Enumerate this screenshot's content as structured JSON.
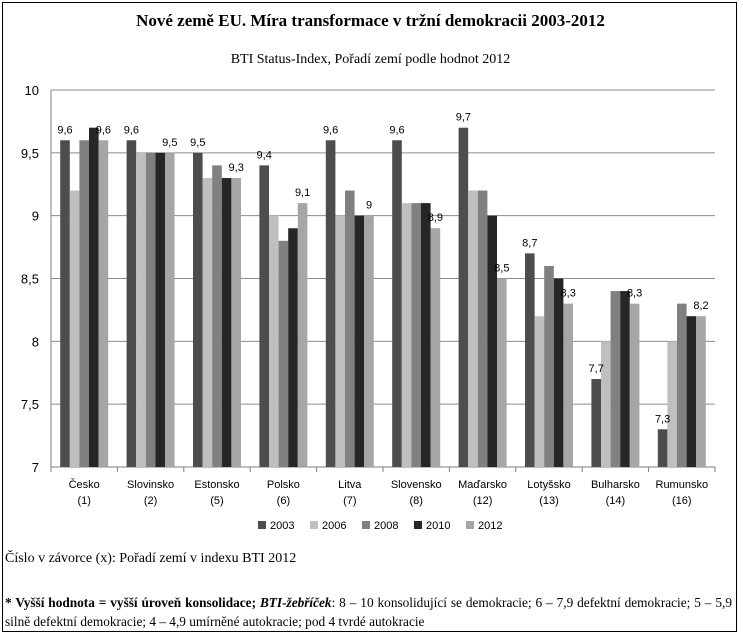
{
  "chart_data": {
    "type": "bar",
    "title": "Nové země EU. Míra transformace v tržní demokracii 2003-2012",
    "subtitle": "BTI Status-Index, Pořadí zemí podle hodnot 2012",
    "categories": [
      {
        "name": "Česko",
        "rank": "(1)"
      },
      {
        "name": "Slovinsko",
        "rank": "(2)"
      },
      {
        "name": "Estonsko",
        "rank": "(5)"
      },
      {
        "name": "Polsko",
        "rank": "(6)"
      },
      {
        "name": "Litva",
        "rank": "(7)"
      },
      {
        "name": "Slovensko",
        "rank": "(8)"
      },
      {
        "name": "Maďarsko",
        "rank": "(12)"
      },
      {
        "name": "Lotyšsko",
        "rank": "(13)"
      },
      {
        "name": "Bulharsko",
        "rank": "(14)"
      },
      {
        "name": "Rumunsko",
        "rank": "(16)"
      }
    ],
    "series": [
      {
        "name": "2003",
        "color": "#4d4d4d",
        "values": [
          9.6,
          9.6,
          9.5,
          9.4,
          9.6,
          9.6,
          9.7,
          8.7,
          7.7,
          7.3
        ]
      },
      {
        "name": "2006",
        "color": "#bfbfbf",
        "values": [
          9.2,
          9.5,
          9.3,
          9.0,
          9.0,
          9.1,
          9.2,
          8.2,
          8.0,
          8.0
        ]
      },
      {
        "name": "2008",
        "color": "#808080",
        "values": [
          9.6,
          9.5,
          9.4,
          8.8,
          9.2,
          9.1,
          9.2,
          8.6,
          8.4,
          8.3
        ]
      },
      {
        "name": "2010",
        "color": "#262626",
        "values": [
          9.7,
          9.5,
          9.3,
          8.9,
          9.0,
          9.1,
          9.0,
          8.5,
          8.4,
          8.2
        ]
      },
      {
        "name": "2012",
        "color": "#a6a6a6",
        "values": [
          9.6,
          9.5,
          9.3,
          9.1,
          9.0,
          8.9,
          8.5,
          8.3,
          8.3,
          8.2
        ]
      }
    ],
    "data_labels": [
      {
        "category": 0,
        "series": 0,
        "text": "9,6"
      },
      {
        "category": 0,
        "series": 4,
        "text": "9,6"
      },
      {
        "category": 1,
        "series": 0,
        "text": "9,6"
      },
      {
        "category": 1,
        "series": 4,
        "text": "9,5"
      },
      {
        "category": 2,
        "series": 0,
        "text": "9,5"
      },
      {
        "category": 2,
        "series": 4,
        "text": "9,3"
      },
      {
        "category": 3,
        "series": 0,
        "text": "9,4"
      },
      {
        "category": 3,
        "series": 4,
        "text": "9,1"
      },
      {
        "category": 4,
        "series": 0,
        "text": "9,6"
      },
      {
        "category": 4,
        "series": 4,
        "text": "9"
      },
      {
        "category": 5,
        "series": 0,
        "text": "9,6"
      },
      {
        "category": 5,
        "series": 4,
        "text": "8,9"
      },
      {
        "category": 6,
        "series": 0,
        "text": "9,7"
      },
      {
        "category": 6,
        "series": 4,
        "text": "8,5"
      },
      {
        "category": 7,
        "series": 0,
        "text": "8,7"
      },
      {
        "category": 7,
        "series": 4,
        "text": "8,3"
      },
      {
        "category": 8,
        "series": 0,
        "text": "7,7"
      },
      {
        "category": 8,
        "series": 4,
        "text": "8,3"
      },
      {
        "category": 9,
        "series": 0,
        "text": "7,3"
      },
      {
        "category": 9,
        "series": 4,
        "text": "8,2"
      }
    ],
    "yticks": [
      "7",
      "7,5",
      "8",
      "8,5",
      "9",
      "9,5",
      "10"
    ],
    "ylim": [
      7,
      10
    ],
    "grid": true,
    "legend": "bottom",
    "xlabel": "",
    "ylabel": ""
  },
  "notes": {
    "rank_note": "Číslo v závorce (x): Pořadí zemí v indexu BTI 2012",
    "footnote_bold": "* Vyšší hodnota = vyšší úroveň konsolidace;",
    "footnote_italic": "BTI-žebříček",
    "footnote_rest": ": 8 – 10 konsolidující se demokracie; 6 – 7,9 defektní demokracie; 5 – 5,9 silně defektní demokracie; 4 – 4,9 umírněné autokracie; pod 4 tvrdé autokracie"
  }
}
